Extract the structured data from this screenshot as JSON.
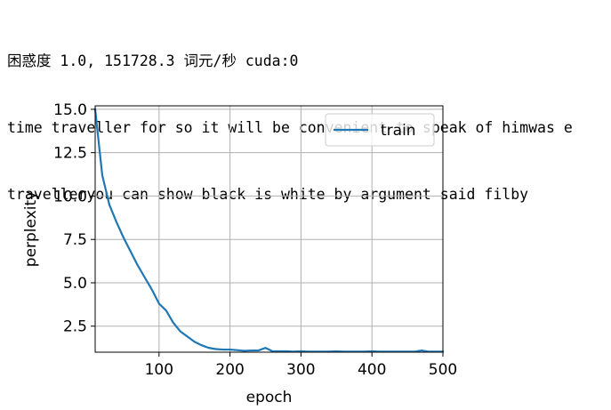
{
  "output": {
    "lines": [
      "困惑度 1.0, 151728.3 词元/秒 cuda:0",
      "time traveller for so it will be convenient to speak of himwas e",
      "travelleryou can show black is white by argument said filby"
    ]
  },
  "colors": {
    "series": "#1f77b4",
    "grid": "#b0b0b0",
    "axis": "#000000"
  },
  "chart_data": {
    "type": "line",
    "title": "",
    "xlabel": "epoch",
    "ylabel": "perplexity",
    "xlim": [
      10,
      500
    ],
    "ylim": [
      1.0,
      15.2
    ],
    "xticks": [
      100,
      200,
      300,
      400,
      500
    ],
    "yticks": [
      2.5,
      5.0,
      7.5,
      10.0,
      12.5,
      15.0
    ],
    "xtick_labels": [
      "100",
      "200",
      "300",
      "400",
      "500"
    ],
    "ytick_labels": [
      "2.5",
      "5.0",
      "7.5",
      "10.0",
      "12.5",
      "15.0"
    ],
    "grid": true,
    "legend": "top-right",
    "series": [
      {
        "name": "train",
        "x": [
          10,
          20,
          30,
          40,
          50,
          60,
          70,
          80,
          90,
          100,
          110,
          120,
          130,
          140,
          150,
          160,
          170,
          180,
          190,
          200,
          210,
          220,
          230,
          240,
          250,
          260,
          270,
          280,
          290,
          300,
          310,
          320,
          330,
          340,
          350,
          360,
          370,
          380,
          390,
          400,
          410,
          420,
          430,
          440,
          450,
          460,
          470,
          480,
          490,
          500
        ],
        "y": [
          15.0,
          11.2,
          9.5,
          8.5,
          7.6,
          6.8,
          6.0,
          5.3,
          4.6,
          3.8,
          3.4,
          2.7,
          2.2,
          1.9,
          1.6,
          1.4,
          1.25,
          1.18,
          1.15,
          1.15,
          1.12,
          1.08,
          1.1,
          1.1,
          1.25,
          1.05,
          1.05,
          1.05,
          1.03,
          1.05,
          1.03,
          1.03,
          1.03,
          1.03,
          1.05,
          1.03,
          1.03,
          1.03,
          1.03,
          1.05,
          1.03,
          1.03,
          1.03,
          1.03,
          1.03,
          1.03,
          1.1,
          1.03,
          1.03,
          1.03
        ]
      }
    ]
  }
}
